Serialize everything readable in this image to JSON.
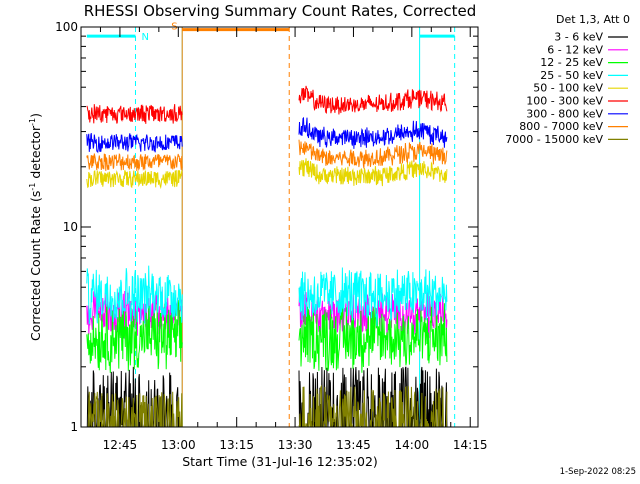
{
  "chart_data": {
    "type": "line",
    "title": "RHESSI Observing Summary Count Rates, Corrected",
    "ylabel_main": "Corrected Count Rate (s",
    "ylabel_sup1": "-1",
    "ylabel_mid": " detector",
    "ylabel_sup2": "-1",
    "ylabel_end": ")",
    "xlabel": "Start Time (31-Jul-16 12:35:02)",
    "yscale": "log",
    "ylim": [
      1,
      100
    ],
    "yticks": [
      {
        "value": 1,
        "label": "1"
      },
      {
        "value": 10,
        "label": "10"
      },
      {
        "value": 100,
        "label": "100"
      }
    ],
    "xlim_minutes_after_1235": [
      0,
      102
    ],
    "xticks": [
      {
        "minutes": 10,
        "label": "12:45"
      },
      {
        "minutes": 25,
        "label": "13:00"
      },
      {
        "minutes": 40,
        "label": "13:15"
      },
      {
        "minutes": 55,
        "label": "13:30"
      },
      {
        "minutes": 70,
        "label": "13:45"
      },
      {
        "minutes": 85,
        "label": "14:00"
      },
      {
        "minutes": 100,
        "label": "14:15"
      }
    ],
    "legend": {
      "placement": "right",
      "header": "Det 1,3, Att 0"
    },
    "series": [
      {
        "name": "3 - 6 keV",
        "color": "#000000",
        "segments": [
          {
            "x": [
              1.5,
              26
            ],
            "y": [
              2.0,
              1.0
            ]
          },
          {
            "x": [
              56,
              94
            ],
            "y": [
              2.0,
              1.0
            ]
          }
        ]
      },
      {
        "name": "6 - 12 keV",
        "color": "#ff00ff",
        "segments": [
          {
            "x": [
              1.5,
              26
            ],
            "y": [
              4.5,
              3.0
            ]
          },
          {
            "x": [
              56,
              94
            ],
            "y": [
              4.5,
              3.0
            ]
          }
        ]
      },
      {
        "name": "12 - 25 keV",
        "color": "#00ff00",
        "segments": [
          {
            "x": [
              1.5,
              26
            ],
            "y": [
              4.0,
              2.0
            ]
          },
          {
            "x": [
              56,
              94
            ],
            "y": [
              4.0,
              2.0
            ]
          }
        ]
      },
      {
        "name": "25 - 50 keV",
        "color": "#00ffff",
        "segments": [
          {
            "x": [
              1.5,
              26
            ],
            "y": [
              6.0,
              3.5
            ]
          },
          {
            "x": [
              56,
              94
            ],
            "y": [
              6.0,
              3.5
            ]
          }
        ]
      },
      {
        "name": "50 - 100 keV",
        "color": "#e6d600",
        "segments": [
          {
            "x": [
              1.5,
              26
            ],
            "y": [
              17.5,
              17.5
            ]
          },
          {
            "x": [
              56,
              94
            ],
            "y": [
              18.5,
              17.5
            ]
          }
        ]
      },
      {
        "name": "100 - 300 keV",
        "color": "#ff0000",
        "segments": [
          {
            "x": [
              1.5,
              26
            ],
            "y": [
              38,
              36
            ]
          },
          {
            "x": [
              56,
              94
            ],
            "y": [
              42,
              40
            ]
          }
        ]
      },
      {
        "name": "300 - 800 keV",
        "color": "#0000ff",
        "segments": [
          {
            "x": [
              1.5,
              26
            ],
            "y": [
              27,
              26
            ]
          },
          {
            "x": [
              56,
              94
            ],
            "y": [
              29,
              27
            ]
          }
        ]
      },
      {
        "name": "800 - 7000 keV",
        "color": "#ff8000",
        "segments": [
          {
            "x": [
              1.5,
              26
            ],
            "y": [
              21.5,
              21
            ]
          },
          {
            "x": [
              56,
              94
            ],
            "y": [
              23,
              21.5
            ]
          }
        ]
      },
      {
        "name": "7000 - 15000 keV",
        "color": "#808000",
        "segments": [
          {
            "x": [
              1.5,
              26
            ],
            "y": [
              1.5,
              1.0
            ]
          },
          {
            "x": [
              56,
              94
            ],
            "y": [
              1.6,
              1.0
            ]
          }
        ]
      }
    ],
    "annotations": [
      {
        "label": "N",
        "color": "#00ffff",
        "x_start": 1.5,
        "x_end": 14,
        "x_end2": 87,
        "x_start2": 96,
        "y": 90
      },
      {
        "label": "S",
        "color": "#ff8000",
        "x_start": 26,
        "x_end": 53.5,
        "y": 97
      }
    ],
    "vertical_lines": [
      {
        "x": 14,
        "color": "#00ffff",
        "style": "dashed"
      },
      {
        "x": 26,
        "color": "#00ffff",
        "style": "solid"
      },
      {
        "x": 26,
        "color": "#ff8000",
        "style": "solid"
      },
      {
        "x": 53.5,
        "color": "#ff8000",
        "style": "dashed"
      },
      {
        "x": 87,
        "color": "#00ffff",
        "style": "solid"
      },
      {
        "x": 96,
        "color": "#00ffff",
        "style": "dashed"
      }
    ],
    "footer_date": "1-Sep-2022 08:25"
  }
}
